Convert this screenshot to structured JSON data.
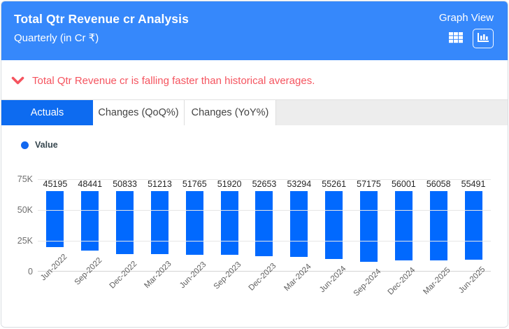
{
  "header": {
    "title": "Total Qtr Revenue cr Analysis",
    "subtitle": "Quarterly (in Cr ₹)",
    "view_label": "Graph View",
    "bg_color": "#3688fb",
    "icons": [
      "table-view-icon",
      "graph-view-icon"
    ]
  },
  "alert": {
    "text": "Total Qtr Revenue cr is falling faster than historical averages.",
    "color": "#f5545f",
    "icon": "chevron-down-icon"
  },
  "tabs": [
    {
      "label": "Actuals",
      "active": true
    },
    {
      "label": "Changes (QoQ%)",
      "active": false
    },
    {
      "label": "Changes (YoY%)",
      "active": false
    }
  ],
  "legend": {
    "label": "Value",
    "color": "#1268f0"
  },
  "chart_data": {
    "type": "bar",
    "title": "Total Qtr Revenue cr Analysis",
    "subtitle": "Quarterly (in Cr ₹)",
    "categories": [
      "Jun-2022",
      "Sep-2022",
      "Dec-2022",
      "Mar-2023",
      "Jun-2023",
      "Sep-2023",
      "Dec-2023",
      "Mar-2024",
      "Jun-2024",
      "Sep-2024",
      "Dec-2024",
      "Mar-2025",
      "Jun-2025"
    ],
    "series": [
      {
        "name": "Value",
        "values": [
          45195,
          48441,
          50833,
          51213,
          51765,
          51920,
          52653,
          53294,
          55261,
          57175,
          56001,
          56058,
          55491
        ]
      }
    ],
    "xlabel": "",
    "ylabel": "",
    "ylim": [
      0,
      75000
    ],
    "ytick_labels": [
      "0",
      "25K",
      "50K",
      "75K"
    ],
    "grid": true,
    "bar_color": "#0169fe",
    "legend_position": "top-left",
    "data_labels": true
  }
}
